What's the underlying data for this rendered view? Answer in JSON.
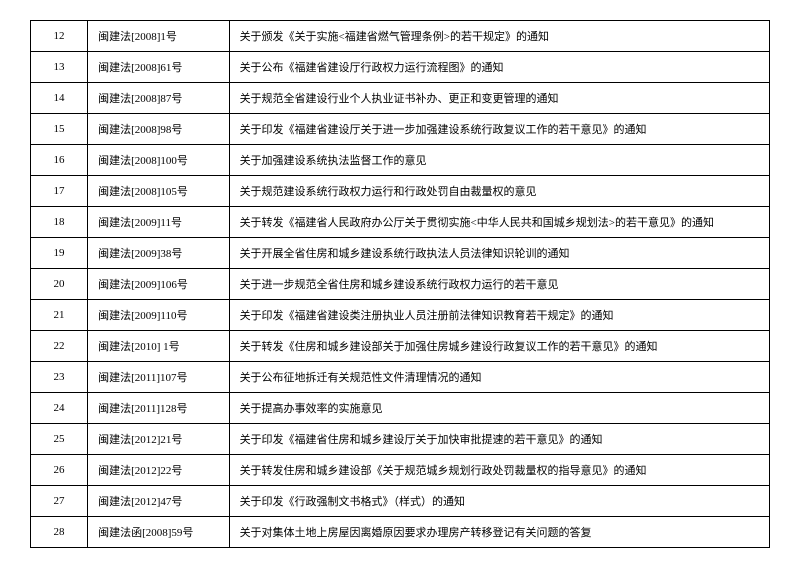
{
  "rows": [
    {
      "num": "12",
      "ref": "闽建法[2008]1号",
      "title": "关于颁发《关于实施<福建省燃气管理条例>的若干规定》的通知"
    },
    {
      "num": "13",
      "ref": "闽建法[2008]61号",
      "title": "关于公布《福建省建设厅行政权力运行流程图》的通知"
    },
    {
      "num": "14",
      "ref": "闽建法[2008]87号",
      "title": "关于规范全省建设行业个人执业证书补办、更正和变更管理的通知"
    },
    {
      "num": "15",
      "ref": "闽建法[2008]98号",
      "title": "关于印发《福建省建设厅关于进一步加强建设系统行政复议工作的若干意见》的通知"
    },
    {
      "num": "16",
      "ref": "闽建法[2008]100号",
      "title": "关于加强建设系统执法监督工作的意见"
    },
    {
      "num": "17",
      "ref": "闽建法[2008]105号",
      "title": "关于规范建设系统行政权力运行和行政处罚自由裁量权的意见"
    },
    {
      "num": "18",
      "ref": "闽建法[2009]11号",
      "title": "关于转发《福建省人民政府办公厅关于贯彻实施<中华人民共和国城乡规划法>的若干意见》的通知"
    },
    {
      "num": "19",
      "ref": "闽建法[2009]38号",
      "title": "关于开展全省住房和城乡建设系统行政执法人员法律知识轮训的通知"
    },
    {
      "num": "20",
      "ref": "闽建法[2009]106号",
      "title": "关于进一步规范全省住房和城乡建设系统行政权力运行的若干意见"
    },
    {
      "num": "21",
      "ref": "闽建法[2009]110号",
      "title": "关于印发《福建省建设类注册执业人员注册前法律知识教育若干规定》的通知"
    },
    {
      "num": "22",
      "ref": "闽建法[2010] 1号",
      "title": "关于转发《住房和城乡建设部关于加强住房城乡建设行政复议工作的若干意见》的通知"
    },
    {
      "num": "23",
      "ref": "闽建法[2011]107号",
      "title": "关于公布征地拆迁有关规范性文件清理情况的通知"
    },
    {
      "num": "24",
      "ref": "闽建法[2011]128号",
      "title": "关于提高办事效率的实施意见"
    },
    {
      "num": "25",
      "ref": "闽建法[2012]21号",
      "title": "关于印发《福建省住房和城乡建设厅关于加快审批提速的若干意见》的通知"
    },
    {
      "num": "26",
      "ref": "闽建法[2012]22号",
      "title": "关于转发住房和城乡建设部《关于规范城乡规划行政处罚裁量权的指导意见》的通知"
    },
    {
      "num": "27",
      "ref": "闽建法[2012]47号",
      "title": "关于印发《行政强制文书格式》（样式）的通知"
    },
    {
      "num": "28",
      "ref": "闽建法函[2008]59号",
      "title": "关于对集体土地上房屋因离婚原因要求办理房产转移登记有关问题的答复"
    }
  ]
}
